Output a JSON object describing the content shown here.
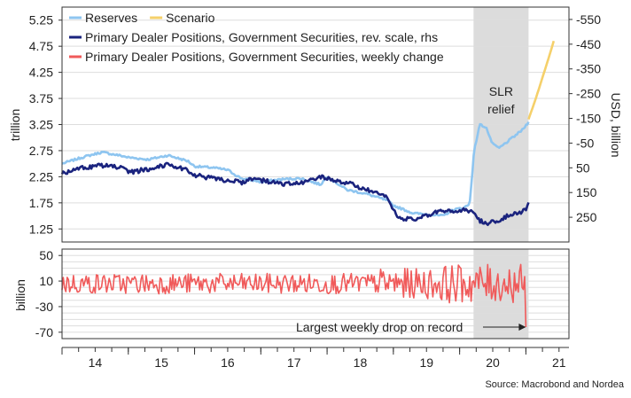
{
  "chart_data": [
    {
      "panel": "top",
      "type": "line",
      "legend": [
        {
          "label": "Reserves",
          "color": "#8ec5f0"
        },
        {
          "label": "Scenario",
          "color": "#f5d06a"
        },
        {
          "label": "Primary Dealer Positions, Government Securities, rev. scale, rhs",
          "color": "#1a237e"
        },
        {
          "label": "Primary Dealer Positions, Government Securities, weekly change",
          "color": "#f05a5a"
        }
      ],
      "legend_position": "top-left",
      "ylabel_left": "trillion",
      "ylabel_right": "USD, billion",
      "left_ticks": [
        "5.25",
        "4.75",
        "4.25",
        "3.75",
        "3.25",
        "2.75",
        "2.25",
        "1.75",
        "1.25"
      ],
      "left_ylim": [
        1.0,
        5.5
      ],
      "right_ticks": [
        "-550",
        "-450",
        "-350",
        "-250",
        "-150",
        "-50",
        "50",
        "150",
        "250"
      ],
      "right_ylim_reversed": [
        -600,
        350
      ],
      "shaded_region": {
        "label": "SLR relief",
        "x_range": [
          2020.21,
          2021.04
        ],
        "color": "#dcdcdc"
      },
      "series": [
        {
          "name": "Reserves",
          "axis": "left",
          "color": "#8ec5f0",
          "points": [
            [
              2014.0,
              2.5
            ],
            [
              2014.3,
              2.62
            ],
            [
              2014.6,
              2.72
            ],
            [
              2014.9,
              2.65
            ],
            [
              2015.0,
              2.62
            ],
            [
              2015.3,
              2.58
            ],
            [
              2015.6,
              2.66
            ],
            [
              2015.9,
              2.55
            ],
            [
              2016.0,
              2.45
            ],
            [
              2016.3,
              2.42
            ],
            [
              2016.5,
              2.38
            ],
            [
              2016.7,
              2.22
            ],
            [
              2016.9,
              2.18
            ],
            [
              2017.0,
              2.15
            ],
            [
              2017.3,
              2.2
            ],
            [
              2017.6,
              2.22
            ],
            [
              2017.9,
              2.1
            ],
            [
              2018.0,
              2.25
            ],
            [
              2018.3,
              2.0
            ],
            [
              2018.6,
              1.92
            ],
            [
              2018.9,
              1.8
            ],
            [
              2019.0,
              1.7
            ],
            [
              2019.3,
              1.55
            ],
            [
              2019.6,
              1.52
            ],
            [
              2019.75,
              1.5
            ],
            [
              2019.9,
              1.62
            ],
            [
              2020.05,
              1.65
            ],
            [
              2020.15,
              1.72
            ],
            [
              2020.22,
              2.75
            ],
            [
              2020.27,
              3.05
            ],
            [
              2020.3,
              3.25
            ],
            [
              2020.4,
              3.2
            ],
            [
              2020.47,
              2.95
            ],
            [
              2020.52,
              2.85
            ],
            [
              2020.6,
              2.8
            ],
            [
              2020.75,
              2.95
            ],
            [
              2020.85,
              3.05
            ],
            [
              2020.95,
              3.15
            ],
            [
              2021.04,
              3.3
            ]
          ]
        },
        {
          "name": "Scenario",
          "axis": "left",
          "color": "#f5d06a",
          "points": [
            [
              2021.04,
              3.35
            ],
            [
              2021.15,
              3.75
            ],
            [
              2021.25,
              4.15
            ],
            [
              2021.35,
              4.55
            ],
            [
              2021.42,
              4.85
            ]
          ]
        },
        {
          "name": "Primary Dealer Positions, Government Securities, rev. scale, rhs",
          "axis": "right",
          "color": "#1a237e",
          "points": [
            [
              2014.0,
              75
            ],
            [
              2014.3,
              50
            ],
            [
              2014.6,
              40
            ],
            [
              2014.9,
              50
            ],
            [
              2015.0,
              70
            ],
            [
              2015.3,
              55
            ],
            [
              2015.6,
              35
            ],
            [
              2015.9,
              60
            ],
            [
              2016.0,
              80
            ],
            [
              2016.3,
              95
            ],
            [
              2016.5,
              100
            ],
            [
              2016.7,
              110
            ],
            [
              2016.9,
              90
            ],
            [
              2017.0,
              100
            ],
            [
              2017.3,
              115
            ],
            [
              2017.6,
              115
            ],
            [
              2017.9,
              85
            ],
            [
              2018.0,
              95
            ],
            [
              2018.3,
              110
            ],
            [
              2018.6,
              140
            ],
            [
              2018.9,
              170
            ],
            [
              2019.0,
              220
            ],
            [
              2019.1,
              255
            ],
            [
              2019.3,
              260
            ],
            [
              2019.5,
              245
            ],
            [
              2019.7,
              225
            ],
            [
              2019.9,
              230
            ],
            [
              2020.05,
              220
            ],
            [
              2020.2,
              225
            ],
            [
              2020.3,
              265
            ],
            [
              2020.45,
              275
            ],
            [
              2020.6,
              260
            ],
            [
              2020.75,
              240
            ],
            [
              2020.9,
              230
            ],
            [
              2021.0,
              220
            ],
            [
              2021.04,
              190
            ]
          ]
        }
      ]
    },
    {
      "panel": "bottom",
      "type": "bar",
      "series_name": "Primary Dealer Positions, Government Securities, weekly change",
      "ylabel": "billion",
      "ticks": [
        "50",
        "10",
        "-30",
        "-70"
      ],
      "ylim": [
        -80,
        60
      ],
      "annotation": "Largest weekly drop on record",
      "largest_drop": {
        "x": 2021.0,
        "value": -62
      },
      "x_ticks": [
        "14",
        "15",
        "16",
        "17",
        "18",
        "19",
        "20",
        "21"
      ],
      "xlim": [
        2014.0,
        2021.65
      ]
    }
  ],
  "source": "Source: Macrobond and Nordea"
}
